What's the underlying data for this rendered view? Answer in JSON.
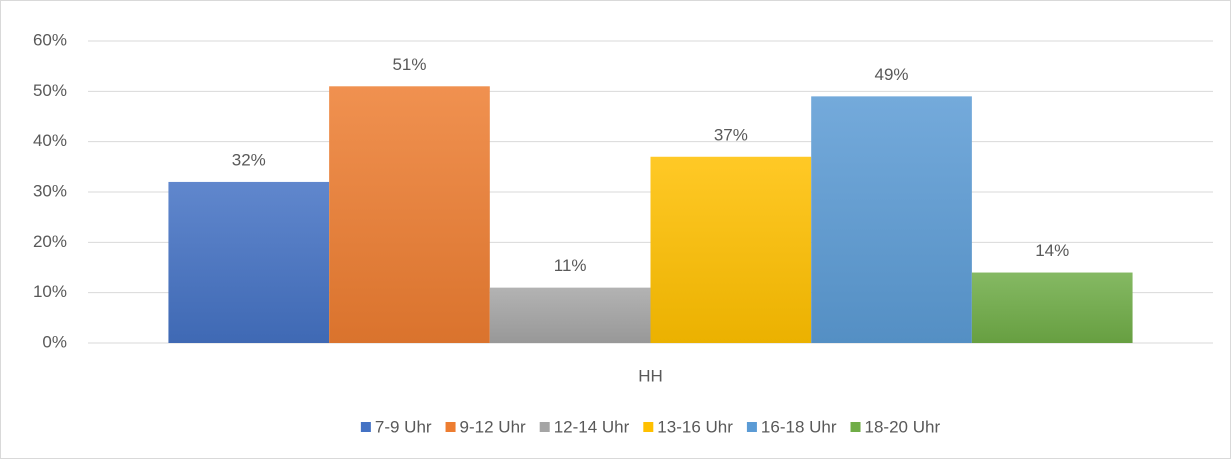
{
  "chart_data": {
    "type": "bar",
    "categories": [
      "HH"
    ],
    "series": [
      {
        "name": "7-9 Uhr",
        "color": "#4472c4",
        "values": [
          32
        ],
        "value_labels": [
          "32%"
        ]
      },
      {
        "name": "9-12 Uhr",
        "color": "#ed7d31",
        "values": [
          51
        ],
        "value_labels": [
          "51%"
        ]
      },
      {
        "name": "12-14 Uhr",
        "color": "#a5a5a5",
        "values": [
          11
        ],
        "value_labels": [
          "11%"
        ]
      },
      {
        "name": "13-16 Uhr",
        "color": "#ffc000",
        "values": [
          37
        ],
        "value_labels": [
          "37%"
        ]
      },
      {
        "name": "16-18 Uhr",
        "color": "#5b9bd5",
        "values": [
          49
        ],
        "value_labels": [
          "49%"
        ]
      },
      {
        "name": "18-20 Uhr",
        "color": "#70ad47",
        "values": [
          14
        ],
        "value_labels": [
          "14%"
        ]
      }
    ],
    "ylim": [
      0,
      60
    ],
    "yticks": [
      {
        "value": 0,
        "label": "0%"
      },
      {
        "value": 10,
        "label": "10%"
      },
      {
        "value": 20,
        "label": "20%"
      },
      {
        "value": 30,
        "label": "30%"
      },
      {
        "value": 40,
        "label": "40%"
      },
      {
        "value": 50,
        "label": "50%"
      },
      {
        "value": 60,
        "label": "60%"
      }
    ],
    "grid": true,
    "legend": "bottom"
  }
}
